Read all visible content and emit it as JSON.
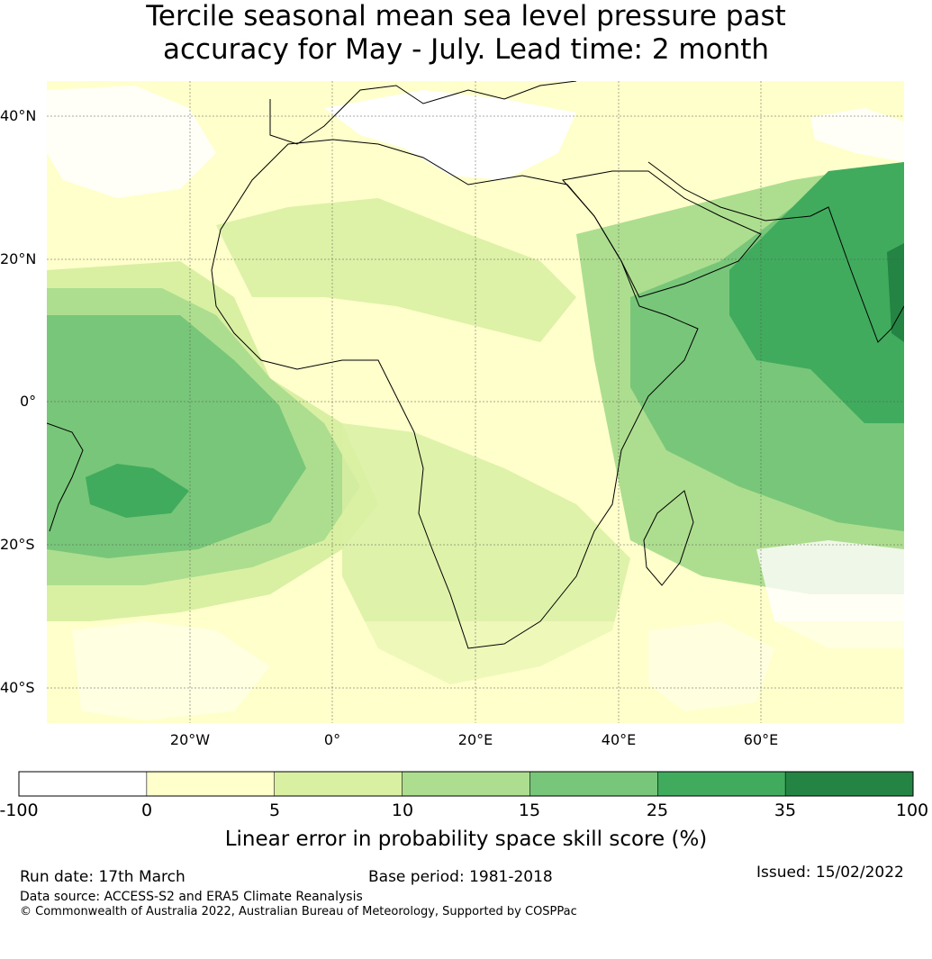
{
  "title": {
    "line1": "Tercile seasonal mean sea level pressure past",
    "line2": "accuracy for May - July. Lead time: 2 month"
  },
  "map": {
    "region": "Africa",
    "lat_ticks": [
      "40°N",
      "20°N",
      "0°",
      "20°S",
      "40°S"
    ],
    "lon_ticks": [
      "20°W",
      "0°",
      "20°E",
      "40°E",
      "60°E"
    ],
    "extent": {
      "lon_min": -40,
      "lon_max": 80,
      "lat_min": -45,
      "lat_max": 45
    },
    "gridlines": true
  },
  "colorbar": {
    "label": "Linear error in probability space skill score (%)",
    "ticks": [
      "-100",
      "0",
      "5",
      "10",
      "15",
      "25",
      "35",
      "100"
    ],
    "colors": [
      "#ffffff",
      "#ffffcc",
      "#d9f0a3",
      "#addd8e",
      "#78c679",
      "#41ab5d",
      "#238443"
    ]
  },
  "footer": {
    "run_date": "Run date: 17th March",
    "base_period": "Base period: 1981-2018",
    "issued": "Issued: 15/02/2022",
    "data_source": "Data source: ACCESS-S2 and ERA5 Climate Reanalysis",
    "copyright": "© Commonwealth of Australia 2022, Australian Bureau of Meteorology, Supported by COSPPac"
  }
}
